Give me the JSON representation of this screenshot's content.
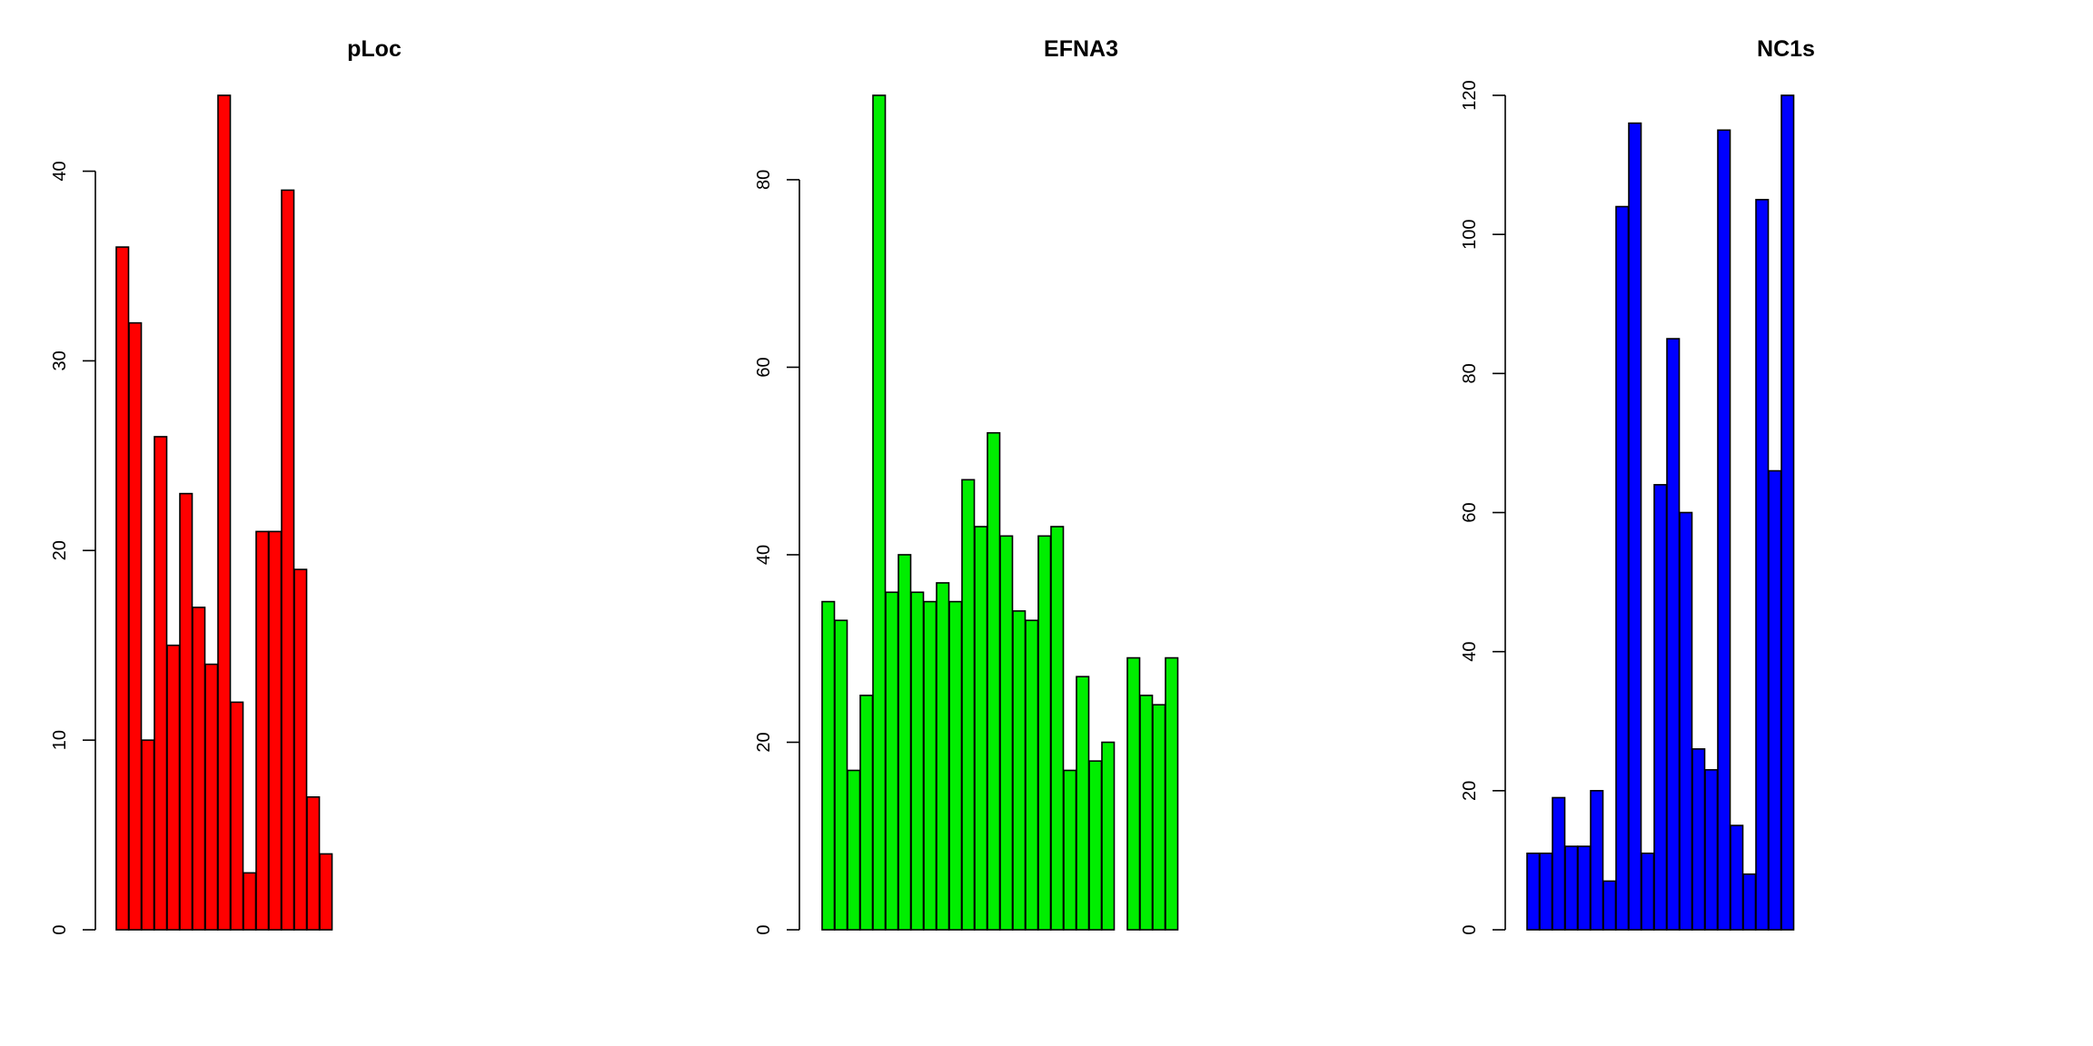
{
  "chart_data": [
    {
      "type": "bar",
      "title": "pLoc",
      "color": "#FF0000",
      "ylim": [
        0,
        44
      ],
      "yticks": [
        0,
        10,
        20,
        30,
        40
      ],
      "values": [
        36,
        32,
        10,
        26,
        15,
        23,
        17,
        14,
        44,
        12,
        3,
        21,
        21,
        39,
        19,
        7,
        4
      ]
    },
    {
      "type": "bar",
      "title": "EFNA3",
      "color": "#00EE00",
      "ylim": [
        0,
        89
      ],
      "yticks": [
        0,
        20,
        40,
        60,
        80
      ],
      "values": [
        35,
        33,
        17,
        25,
        89,
        36,
        40,
        36,
        35,
        37,
        35,
        48,
        43,
        53,
        42,
        34,
        33,
        42,
        43,
        17,
        27,
        18,
        20,
        0,
        29,
        25,
        24,
        29
      ]
    },
    {
      "type": "bar",
      "title": "NC1s",
      "color": "#0000FF",
      "ylim": [
        0,
        120
      ],
      "yticks": [
        0,
        20,
        40,
        60,
        80,
        100,
        120
      ],
      "values": [
        11,
        11,
        19,
        12,
        12,
        20,
        7,
        104,
        116,
        11,
        64,
        85,
        60,
        26,
        23,
        115,
        15,
        8,
        105,
        66,
        120
      ]
    }
  ]
}
